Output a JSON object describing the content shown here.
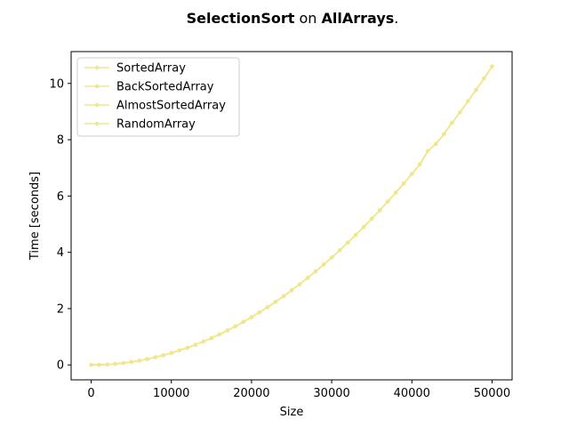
{
  "chart_data": {
    "type": "line",
    "title_parts": [
      {
        "text": "SelectionSort",
        "bold": true
      },
      {
        "text": " on ",
        "bold": false
      },
      {
        "text": "AllArrays",
        "bold": true
      },
      {
        "text": ".",
        "bold": false
      }
    ],
    "xlabel": "Size",
    "ylabel": "Time [seconds]",
    "xlim": [
      -2500,
      52500
    ],
    "ylim": [
      -0.53,
      11.13
    ],
    "xticks": [
      0,
      10000,
      20000,
      30000,
      40000,
      50000
    ],
    "yticks": [
      0,
      2,
      4,
      6,
      8,
      10
    ],
    "legend_position": "upper-left",
    "line_color": "#f0e68c",
    "x": [
      0,
      1000,
      2000,
      3000,
      4000,
      5000,
      6000,
      7000,
      8000,
      9000,
      10000,
      11000,
      12000,
      13000,
      14000,
      15000,
      16000,
      17000,
      18000,
      19000,
      20000,
      21000,
      22000,
      23000,
      24000,
      25000,
      26000,
      27000,
      28000,
      29000,
      30000,
      31000,
      32000,
      33000,
      34000,
      35000,
      36000,
      37000,
      38000,
      39000,
      40000,
      41000,
      42000,
      43000,
      44000,
      45000,
      46000,
      47000,
      48000,
      49000,
      50000
    ],
    "series": [
      {
        "name": "SortedArray",
        "values": [
          0,
          0.004,
          0.017,
          0.038,
          0.068,
          0.106,
          0.153,
          0.208,
          0.272,
          0.344,
          0.424,
          0.513,
          0.611,
          0.717,
          0.831,
          0.954,
          1.085,
          1.225,
          1.374,
          1.53,
          1.696,
          1.87,
          2.052,
          2.243,
          2.442,
          2.65,
          2.866,
          3.091,
          3.324,
          3.566,
          3.816,
          4.075,
          4.342,
          4.618,
          4.902,
          5.194,
          5.495,
          5.805,
          6.123,
          6.449,
          6.784,
          7.128,
          7.6,
          7.85,
          8.2,
          8.6,
          8.97,
          9.37,
          9.77,
          10.18,
          10.6
        ]
      },
      {
        "name": "BackSortedArray",
        "values": [
          0,
          0.004,
          0.017,
          0.038,
          0.068,
          0.106,
          0.153,
          0.208,
          0.272,
          0.344,
          0.424,
          0.513,
          0.611,
          0.717,
          0.831,
          0.954,
          1.085,
          1.225,
          1.374,
          1.53,
          1.696,
          1.87,
          2.052,
          2.243,
          2.442,
          2.65,
          2.866,
          3.091,
          3.324,
          3.566,
          3.816,
          4.075,
          4.342,
          4.618,
          4.902,
          5.194,
          5.495,
          5.805,
          6.123,
          6.449,
          6.784,
          7.128,
          7.6,
          7.85,
          8.2,
          8.6,
          8.97,
          9.37,
          9.77,
          10.18,
          10.6
        ]
      },
      {
        "name": "AlmostSortedArray",
        "values": [
          0,
          0.004,
          0.017,
          0.038,
          0.068,
          0.106,
          0.153,
          0.208,
          0.272,
          0.344,
          0.424,
          0.513,
          0.611,
          0.717,
          0.831,
          0.954,
          1.085,
          1.225,
          1.374,
          1.53,
          1.696,
          1.87,
          2.052,
          2.243,
          2.442,
          2.65,
          2.866,
          3.091,
          3.324,
          3.566,
          3.816,
          4.075,
          4.342,
          4.618,
          4.902,
          5.194,
          5.495,
          5.805,
          6.123,
          6.449,
          6.784,
          7.128,
          7.6,
          7.85,
          8.2,
          8.6,
          8.97,
          9.37,
          9.77,
          10.18,
          10.6
        ]
      },
      {
        "name": "RandomArray",
        "values": [
          0,
          0.004,
          0.017,
          0.038,
          0.068,
          0.106,
          0.153,
          0.208,
          0.272,
          0.344,
          0.424,
          0.513,
          0.611,
          0.717,
          0.831,
          0.954,
          1.085,
          1.225,
          1.374,
          1.53,
          1.696,
          1.87,
          2.052,
          2.243,
          2.442,
          2.65,
          2.866,
          3.091,
          3.324,
          3.566,
          3.816,
          4.075,
          4.342,
          4.618,
          4.902,
          5.194,
          5.495,
          5.805,
          6.123,
          6.449,
          6.784,
          7.128,
          7.6,
          7.85,
          8.2,
          8.6,
          8.97,
          9.37,
          9.77,
          10.18,
          10.6
        ]
      }
    ]
  }
}
